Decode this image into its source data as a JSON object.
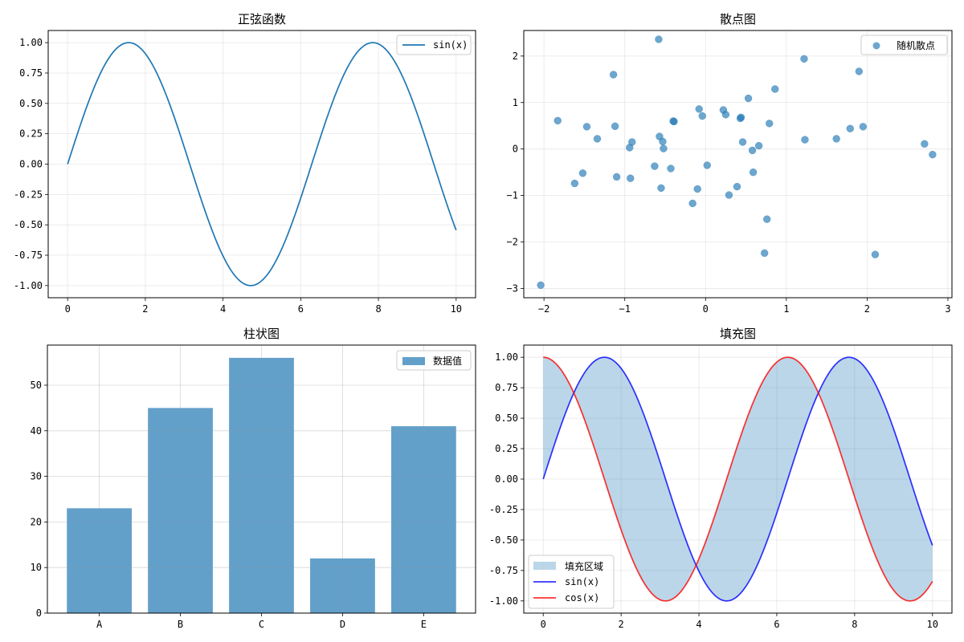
{
  "chart_data": [
    {
      "type": "line",
      "title": "正弦函数",
      "xlabel": "",
      "ylabel": "",
      "xlim": [
        -0.5,
        10.5
      ],
      "ylim": [
        -1.1,
        1.1
      ],
      "xticks": [
        0,
        2,
        4,
        6,
        8,
        10
      ],
      "yticks": [
        -1.0,
        -0.75,
        -0.5,
        -0.25,
        0.0,
        0.25,
        0.5,
        0.75,
        1.0
      ],
      "xtick_labels": [
        "0",
        "2",
        "4",
        "6",
        "8",
        "10"
      ],
      "ytick_labels": [
        "-1.00",
        "-0.75",
        "-0.50",
        "-0.25",
        "0.00",
        "0.25",
        "0.50",
        "0.75",
        "1.00"
      ],
      "grid": true,
      "legend": "top-right",
      "series": [
        {
          "name": "sin(x)",
          "function": "sin",
          "x_range": [
            0,
            10
          ],
          "color": "#1f77b4"
        }
      ]
    },
    {
      "type": "scatter",
      "title": "散点图",
      "xlabel": "",
      "ylabel": "",
      "xlim": [
        -2.25,
        3.05
      ],
      "ylim": [
        -3.2,
        2.55
      ],
      "xticks": [
        -2,
        -1,
        0,
        1,
        2,
        3
      ],
      "yticks": [
        -3,
        -2,
        -1,
        0,
        1,
        2
      ],
      "xtick_labels": [
        "−2",
        "−1",
        "0",
        "1",
        "2",
        "3"
      ],
      "ytick_labels": [
        "−3",
        "−2",
        "−1",
        "0",
        "1",
        "2"
      ],
      "grid": true,
      "legend": "top-right",
      "series": [
        {
          "name": "随机散点",
          "color": "#1f77b4",
          "alpha": 0.65,
          "points": [
            [
              -2.04,
              -2.93
            ],
            [
              -1.83,
              0.61
            ],
            [
              -1.62,
              -0.74
            ],
            [
              -1.52,
              -0.52
            ],
            [
              -1.47,
              0.48
            ],
            [
              -1.34,
              0.22
            ],
            [
              -1.14,
              1.6
            ],
            [
              -1.12,
              0.49
            ],
            [
              -1.1,
              -0.6
            ],
            [
              -0.94,
              0.03
            ],
            [
              -0.93,
              -0.63
            ],
            [
              -0.91,
              0.15
            ],
            [
              -0.63,
              -0.37
            ],
            [
              -0.58,
              2.36
            ],
            [
              -0.57,
              0.27
            ],
            [
              -0.55,
              -0.84
            ],
            [
              -0.53,
              0.16
            ],
            [
              -0.52,
              0.01
            ],
            [
              -0.43,
              -0.42
            ],
            [
              -0.4,
              0.6
            ],
            [
              -0.39,
              0.59
            ],
            [
              -0.16,
              -1.17
            ],
            [
              -0.1,
              -0.86
            ],
            [
              -0.08,
              0.86
            ],
            [
              -0.04,
              0.71
            ],
            [
              0.02,
              -0.35
            ],
            [
              0.22,
              0.84
            ],
            [
              0.25,
              0.74
            ],
            [
              0.29,
              -0.99
            ],
            [
              0.39,
              -0.81
            ],
            [
              0.43,
              0.66
            ],
            [
              0.44,
              0.68
            ],
            [
              0.46,
              0.15
            ],
            [
              0.53,
              1.09
            ],
            [
              0.58,
              -0.03
            ],
            [
              0.59,
              -0.5
            ],
            [
              0.66,
              0.07
            ],
            [
              0.73,
              -2.24
            ],
            [
              0.76,
              -1.51
            ],
            [
              0.79,
              0.55
            ],
            [
              0.86,
              1.29
            ],
            [
              1.22,
              1.94
            ],
            [
              1.23,
              0.2
            ],
            [
              1.62,
              0.22
            ],
            [
              1.79,
              0.44
            ],
            [
              1.9,
              1.67
            ],
            [
              1.95,
              0.48
            ],
            [
              2.1,
              -2.27
            ],
            [
              2.71,
              0.11
            ],
            [
              2.81,
              -0.12
            ]
          ]
        }
      ]
    },
    {
      "type": "bar",
      "title": "柱状图",
      "xlabel": "",
      "ylabel": "",
      "categories": [
        "A",
        "B",
        "C",
        "D",
        "E"
      ],
      "values": [
        23,
        45,
        56,
        12,
        41
      ],
      "ylim": [
        0,
        58.8
      ],
      "yticks": [
        0,
        10,
        20,
        30,
        40,
        50
      ],
      "ytick_labels": [
        "0",
        "10",
        "20",
        "30",
        "40",
        "50"
      ],
      "grid": true,
      "legend": "top-right",
      "series": [
        {
          "name": "数据值",
          "values": [
            23,
            45,
            56,
            12,
            41
          ],
          "color": "#1f77b4",
          "alpha": 0.7
        }
      ]
    },
    {
      "type": "area",
      "title": "填充图",
      "xlabel": "",
      "ylabel": "",
      "xlim": [
        -0.5,
        10.5
      ],
      "ylim": [
        -1.1,
        1.1
      ],
      "xticks": [
        0,
        2,
        4,
        6,
        8,
        10
      ],
      "yticks": [
        -1.0,
        -0.75,
        -0.5,
        -0.25,
        0.0,
        0.25,
        0.5,
        0.75,
        1.0
      ],
      "xtick_labels": [
        "0",
        "2",
        "4",
        "6",
        "8",
        "10"
      ],
      "ytick_labels": [
        "-1.00",
        "-0.75",
        "-0.50",
        "-0.25",
        "0.00",
        "0.25",
        "0.50",
        "0.75",
        "1.00"
      ],
      "grid": true,
      "legend": "bottom-left",
      "fill": {
        "name": "填充区域",
        "between": [
          "sin",
          "cos"
        ],
        "color": "#1f77b4",
        "alpha": 0.3
      },
      "series": [
        {
          "name": "sin(x)",
          "function": "sin",
          "x_range": [
            0,
            10
          ],
          "color": "#0000ff",
          "alpha": 0.8
        },
        {
          "name": "cos(x)",
          "function": "cos",
          "x_range": [
            0,
            10
          ],
          "color": "#ff0000",
          "alpha": 0.8
        }
      ]
    }
  ]
}
